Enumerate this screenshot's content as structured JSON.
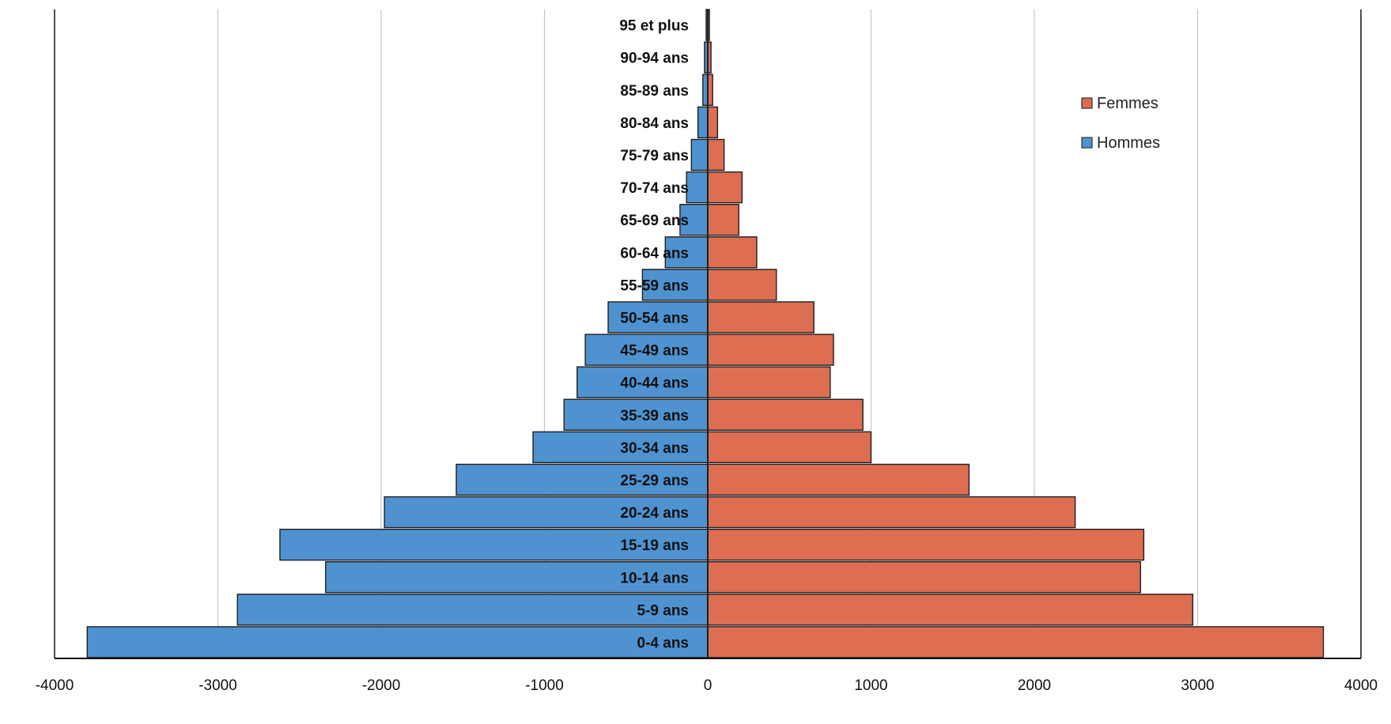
{
  "chart_data": {
    "type": "bar",
    "orientation": "horizontal",
    "title": "",
    "xlabel": "",
    "ylabel": "",
    "xlim": [
      -4000,
      4000
    ],
    "x_ticks": [
      -4000,
      -3000,
      -2000,
      -1000,
      0,
      1000,
      2000,
      3000,
      4000
    ],
    "grid": "vertical",
    "legend_position": "right",
    "categories": [
      "0-4 ans",
      "5-9 ans",
      "10-14 ans",
      "15-19 ans",
      "20-24 ans",
      "25-29 ans",
      "30-34 ans",
      "35-39 ans",
      "40-44 ans",
      "45-49 ans",
      "50-54 ans",
      "55-59 ans",
      "60-64 ans",
      "65-69 ans",
      "70-74 ans",
      "75-79 ans",
      "80-84 ans",
      "85-89 ans",
      "90-94 ans",
      "95 et plus"
    ],
    "series": [
      {
        "name": "Femmes",
        "color": "#DD6E52",
        "values": [
          3770,
          2970,
          2650,
          2670,
          2250,
          1600,
          1000,
          950,
          750,
          770,
          650,
          420,
          300,
          190,
          210,
          100,
          60,
          30,
          20,
          10
        ]
      },
      {
        "name": "Hommes",
        "color": "#4F92D0",
        "values": [
          -3800,
          -2880,
          -2340,
          -2620,
          -1980,
          -1540,
          -1070,
          -880,
          -800,
          -750,
          -610,
          -400,
          -260,
          -170,
          -130,
          -100,
          -60,
          -30,
          -20,
          -10
        ]
      }
    ]
  }
}
